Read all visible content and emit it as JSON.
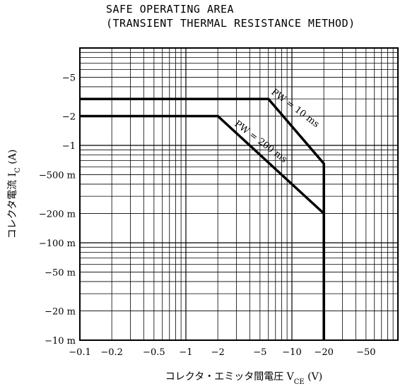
{
  "chart_data": {
    "type": "line",
    "title": "SAFE OPERATING AREA",
    "subtitle": "(TRANSIENT THERMAL RESISTANCE METHOD)",
    "xlabel": "コレクタ・エミッタ間電圧",
    "xlabel_symbol": "V",
    "xlabel_sub": "CE",
    "xlabel_unit": "(V)",
    "ylabel": "コレクタ電流",
    "ylabel_symbol": "I",
    "ylabel_sub": "C",
    "ylabel_unit": "(A)",
    "x_scale": "log",
    "y_scale": "log",
    "xlim": [
      0.1,
      100
    ],
    "ylim": [
      0.01,
      10
    ],
    "grid": true,
    "x_ticks": [
      {
        "value": 0.1,
        "label": "−0.1"
      },
      {
        "value": 0.2,
        "label": "−0.2"
      },
      {
        "value": 0.5,
        "label": "−0.5"
      },
      {
        "value": 1,
        "label": "−1"
      },
      {
        "value": 2,
        "label": "−2"
      },
      {
        "value": 5,
        "label": "−5"
      },
      {
        "value": 10,
        "label": "−10"
      },
      {
        "value": 20,
        "label": "−20"
      },
      {
        "value": 50,
        "label": "−50"
      }
    ],
    "y_ticks": [
      {
        "value": 5,
        "label": "−5"
      },
      {
        "value": 2,
        "label": "−2"
      },
      {
        "value": 1,
        "label": "−1"
      },
      {
        "value": 0.5,
        "label": "−500 m"
      },
      {
        "value": 0.2,
        "label": "−200 m"
      },
      {
        "value": 0.1,
        "label": "−100 m"
      },
      {
        "value": 0.05,
        "label": "−50 m"
      },
      {
        "value": 0.02,
        "label": "−20 m"
      },
      {
        "value": 0.01,
        "label": "−10 m"
      }
    ],
    "series": [
      {
        "name": "PW = 10 ms",
        "x": [
          0.1,
          6,
          20,
          20
        ],
        "y": [
          3,
          3,
          0.65,
          0.01
        ]
      },
      {
        "name": "PW = 200 ms",
        "x": [
          0.1,
          2,
          20,
          20
        ],
        "y": [
          2,
          2,
          0.2,
          0.01
        ]
      }
    ],
    "annotations": [
      {
        "text": "PW = 10 ms",
        "series": 0
      },
      {
        "text": "PW = 200 ms",
        "series": 1
      }
    ]
  }
}
